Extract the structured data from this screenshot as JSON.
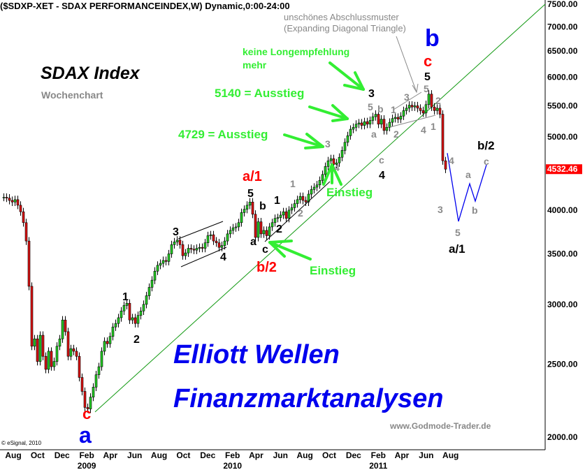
{
  "header": {
    "title": "($SDXP-XET - SDAX PERFORMANCEINDEX,W) Dynamic,0:00-24:00"
  },
  "chart_title": "SDAX Index",
  "chart_subtitle": "Wochenchart",
  "pattern_note": [
    "unschönes Abschlussmuster",
    "(Expanding Diagonal Triangle)"
  ],
  "watermark": [
    "Elliott Wellen",
    "Finanzmarktanalysen"
  ],
  "website": "www.Godmode-Trader.de",
  "copyright": "© eSignal, 2010",
  "colors": {
    "up": "#22cc22",
    "down": "#dd1111",
    "trendline": "#119911",
    "projection": "#0000ee",
    "last_price_bg": "#ff0000",
    "green_text": "#33ee33",
    "wave_grey": "#8a8a8a"
  },
  "chart_data": {
    "type": "candlestick",
    "interval": "weekly",
    "first_week": "2008-07-18",
    "y_scale": "log",
    "ylim": [
      2000,
      7500
    ],
    "y_ticks": [
      2000,
      2500,
      3000,
      3500,
      4000,
      5000,
      5500,
      6000,
      6500,
      7000,
      7500
    ],
    "y_tick_labels": [
      "2000.00",
      "2500.00",
      "3000.00",
      "3500.00",
      "4000.00",
      "5000.00",
      "5500.00",
      "6000.00",
      "6500.00",
      "7000.00",
      "7500.00"
    ],
    "last_price": "4532.46",
    "x_months": [
      {
        "label": "Aug",
        "date": "2008-08-01"
      },
      {
        "label": "Oct",
        "date": "2008-10-01"
      },
      {
        "label": "Dec",
        "date": "2008-12-01"
      },
      {
        "label": "Feb",
        "date": "2009-02-01"
      },
      {
        "label": "Apr",
        "date": "2009-04-01"
      },
      {
        "label": "Jun",
        "date": "2009-06-01"
      },
      {
        "label": "Aug",
        "date": "2009-08-01"
      },
      {
        "label": "Oct",
        "date": "2009-10-01"
      },
      {
        "label": "Dec",
        "date": "2009-12-01"
      },
      {
        "label": "Feb",
        "date": "2010-02-01"
      },
      {
        "label": "Apr",
        "date": "2010-04-01"
      },
      {
        "label": "Jun",
        "date": "2010-06-01"
      },
      {
        "label": "Aug",
        "date": "2010-08-01"
      },
      {
        "label": "Oct",
        "date": "2010-10-01"
      },
      {
        "label": "Dec",
        "date": "2010-12-01"
      },
      {
        "label": "Feb",
        "date": "2011-02-01"
      },
      {
        "label": "Apr",
        "date": "2011-04-01"
      },
      {
        "label": "Jun",
        "date": "2011-06-01"
      },
      {
        "label": "Aug",
        "date": "2011-08-01"
      }
    ],
    "x_years": [
      {
        "label": "2009",
        "date": "2009-02-01"
      },
      {
        "label": "2010",
        "date": "2010-02-01"
      },
      {
        "label": "2011",
        "date": "2011-02-01"
      }
    ],
    "closes": [
      4160,
      4150,
      4120,
      4100,
      4130,
      4060,
      3980,
      3850,
      3640,
      3170,
      2640,
      2700,
      2520,
      2730,
      2560,
      2460,
      2600,
      2480,
      2520,
      2640,
      2700,
      2860,
      2760,
      2560,
      2620,
      2600,
      2560,
      2400,
      2300,
      2190,
      2180,
      2260,
      2330,
      2420,
      2480,
      2600,
      2680,
      2660,
      2720,
      2800,
      2830,
      2880,
      2940,
      2990,
      3010,
      2860,
      2880,
      2830,
      2900,
      2940,
      3000,
      3080,
      3160,
      3230,
      3320,
      3380,
      3400,
      3430,
      3420,
      3500,
      3600,
      3630,
      3650,
      3600,
      3480,
      3510,
      3560,
      3550,
      3540,
      3560,
      3570,
      3560,
      3620,
      3700,
      3710,
      3640,
      3620,
      3570,
      3590,
      3640,
      3720,
      3760,
      3790,
      3800,
      3850,
      3970,
      4010,
      4060,
      4100,
      3950,
      3680,
      3860,
      3720,
      3760,
      3700,
      3800,
      3850,
      3900,
      3910,
      3940,
      3980,
      3900,
      4000,
      4030,
      4080,
      4130,
      4170,
      4120,
      4100,
      4200,
      4260,
      4290,
      4320,
      4380,
      4460,
      4570,
      4650,
      4680,
      4600,
      4620,
      4700,
      4800,
      4920,
      5020,
      5120,
      5150,
      5200,
      5220,
      5180,
      5240,
      5200,
      5260,
      5320,
      5360,
      5200,
      5280,
      5100,
      5150,
      5230,
      5290,
      5310,
      5280,
      5330,
      5420,
      5460,
      5510,
      5480,
      5500,
      5460,
      5420,
      5380,
      5520,
      5700,
      5480,
      5420,
      5460,
      5360,
      4650,
      4532.46
    ],
    "trendline": [
      [
        "2009-03-06",
        2160
      ],
      [
        "2012-04-06",
        7500
      ]
    ],
    "projection": [
      [
        "2011-08-05",
        4760
      ],
      [
        "2011-09-02",
        3865
      ],
      [
        "2011-09-30",
        4336
      ],
      [
        "2011-10-14",
        4111
      ],
      [
        "2011-11-11",
        4593
      ]
    ]
  },
  "annotations": {
    "waves": [
      "3",
      "4",
      "1",
      "2",
      "c",
      "a",
      "a/1",
      "5",
      "b",
      "1",
      "2",
      "a",
      "c",
      "b/2",
      "1",
      "2",
      "3",
      "4",
      "3",
      "5",
      "b",
      "a",
      "c",
      "4",
      "1",
      "2",
      "3",
      "5",
      "4",
      "1",
      "2",
      "5",
      "c",
      "b",
      "3",
      "4",
      "5",
      "a",
      "b",
      "c",
      "b/2",
      "a/1"
    ],
    "green": [
      "keine Longempfehlung",
      "mehr",
      "5140 = Ausstieg",
      "4729 = Ausstieg",
      "Einstieg",
      "Einstieg"
    ]
  }
}
